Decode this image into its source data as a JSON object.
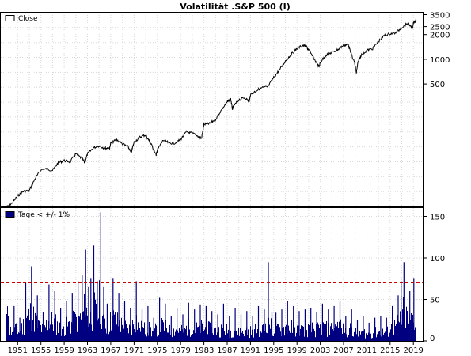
{
  "chart_data": [
    {
      "type": "line",
      "title": "Volatilität .S&P 500 (I)",
      "legend": "Close",
      "legend_placement": "top-left",
      "y_scale": "log",
      "ylim": [
        16,
        3700
      ],
      "yticks": [
        "3500",
        "2500",
        "2000",
        "1000",
        "500"
      ],
      "grid": true,
      "series": [
        {
          "name": "Close",
          "x": [
            1949.0,
            1950.0,
            1951.0,
            1952.0,
            1953.0,
            1954.0,
            1955.0,
            1956.0,
            1957.0,
            1958.0,
            1959.0,
            1960.0,
            1961.0,
            1962.0,
            1962.5,
            1963.0,
            1964.0,
            1965.0,
            1966.0,
            1966.8,
            1967.0,
            1968.0,
            1969.0,
            1970.0,
            1970.5,
            1971.0,
            1972.0,
            1972.9,
            1973.5,
            1974.0,
            1974.8,
            1975.0,
            1976.0,
            1977.0,
            1978.0,
            1979.0,
            1980.0,
            1981.0,
            1982.0,
            1982.6,
            1983.0,
            1984.0,
            1985.0,
            1986.0,
            1987.0,
            1987.6,
            1987.9,
            1988.0,
            1989.0,
            1990.0,
            1990.8,
            1991.0,
            1992.0,
            1993.0,
            1994.0,
            1995.0,
            1996.0,
            1997.0,
            1998.0,
            1999.0,
            2000.0,
            2000.6,
            2001.0,
            2002.0,
            2002.8,
            2003.0,
            2004.0,
            2005.0,
            2006.0,
            2007.0,
            2007.8,
            2008.0,
            2008.9,
            2009.2,
            2009.5,
            2010.0,
            2011.0,
            2012.0,
            2013.0,
            2014.0,
            2015.0,
            2016.0,
            2017.0,
            2018.0,
            2018.9,
            2019.0,
            2019.5
          ],
          "values": [
            15.5,
            17.5,
            21.5,
            24.5,
            25.0,
            35.0,
            45.0,
            46.0,
            44.0,
            55.0,
            58.0,
            56.0,
            70.0,
            62.0,
            55.0,
            70.0,
            83.0,
            88.0,
            82.0,
            83.0,
            95.0,
            104.0,
            93.0,
            85.0,
            72.0,
            97.0,
            112.0,
            119.0,
            104.0,
            90.0,
            68.0,
            78.0,
            103.0,
            95.0,
            95.0,
            105.0,
            130.0,
            125.0,
            115.0,
            108.0,
            160.0,
            164.0,
            185.0,
            240.0,
            300.0,
            330.0,
            245.0,
            260.0,
            320.0,
            340.0,
            305.0,
            370.0,
            415.0,
            450.0,
            460.0,
            600.0,
            740.0,
            950.0,
            1150.0,
            1350.0,
            1480.0,
            1440.0,
            1300.0,
            1000.0,
            800.0,
            920.0,
            1130.0,
            1210.0,
            1310.0,
            1480.0,
            1520.0,
            1350.0,
            900.0,
            680.0,
            930.0,
            1120.0,
            1280.0,
            1350.0,
            1650.0,
            1950.0,
            2050.0,
            2100.0,
            2450.0,
            2750.0,
            2400.0,
            2800.0,
            3000.0
          ]
        }
      ]
    },
    {
      "type": "bar",
      "legend": "Tage < +/- 1%",
      "legend_placement": "top-left",
      "ylim": [
        0,
        160
      ],
      "yticks": [
        "150",
        "100",
        "50",
        "0"
      ],
      "reference_line": 70,
      "grid": true,
      "x_ticks": [
        "1951",
        "1955",
        "1959",
        "1963",
        "1967",
        "1971",
        "1975",
        "1979",
        "1983",
        "1987",
        "1991",
        "1995",
        "1999",
        "2003",
        "2007",
        "2011",
        "2015",
        "2019"
      ],
      "series": [
        {
          "name": "Tage < +/- 1%",
          "x": [
            1949.3,
            1950.3,
            1951.3,
            1952.3,
            1953.3,
            1954.3,
            1955.3,
            1956.3,
            1957.3,
            1958.3,
            1959.3,
            1960.3,
            1961.3,
            1962.0,
            1962.6,
            1963.1,
            1963.5,
            1964.0,
            1964.6,
            1965.2,
            1965.7,
            1966.3,
            1967.3,
            1968.3,
            1969.3,
            1970.3,
            1971.3,
            1972.3,
            1973.3,
            1974.3,
            1975.3,
            1976.3,
            1977.3,
            1978.3,
            1979.3,
            1980.3,
            1981.3,
            1982.3,
            1983.3,
            1984.3,
            1985.3,
            1986.3,
            1987.3,
            1988.3,
            1989.3,
            1990.3,
            1991.3,
            1992.3,
            1993.3,
            1994.0,
            1994.6,
            1995.3,
            1996.3,
            1997.3,
            1998.3,
            1999.3,
            2000.3,
            2001.3,
            2002.3,
            2003.3,
            2004.3,
            2005.3,
            2006.3,
            2007.3,
            2008.3,
            2009.3,
            2010.3,
            2011.3,
            2012.3,
            2013.3,
            2014.3,
            2015.3,
            2016.3,
            2016.8,
            2017.3,
            2018.3,
            2019.0
          ],
          "values": [
            30,
            42,
            28,
            70,
            90,
            55,
            35,
            68,
            60,
            40,
            48,
            58,
            72,
            80,
            110,
            65,
            75,
            115,
            72,
            155,
            65,
            45,
            75,
            58,
            48,
            40,
            72,
            38,
            42,
            28,
            52,
            45,
            30,
            40,
            32,
            46,
            38,
            44,
            42,
            36,
            32,
            45,
            30,
            40,
            32,
            36,
            30,
            42,
            38,
            95,
            35,
            34,
            38,
            48,
            42,
            36,
            38,
            40,
            35,
            45,
            38,
            42,
            48,
            30,
            38,
            25,
            30,
            22,
            28,
            30,
            28,
            42,
            55,
            72,
            95,
            60,
            75
          ]
        }
      ]
    }
  ]
}
